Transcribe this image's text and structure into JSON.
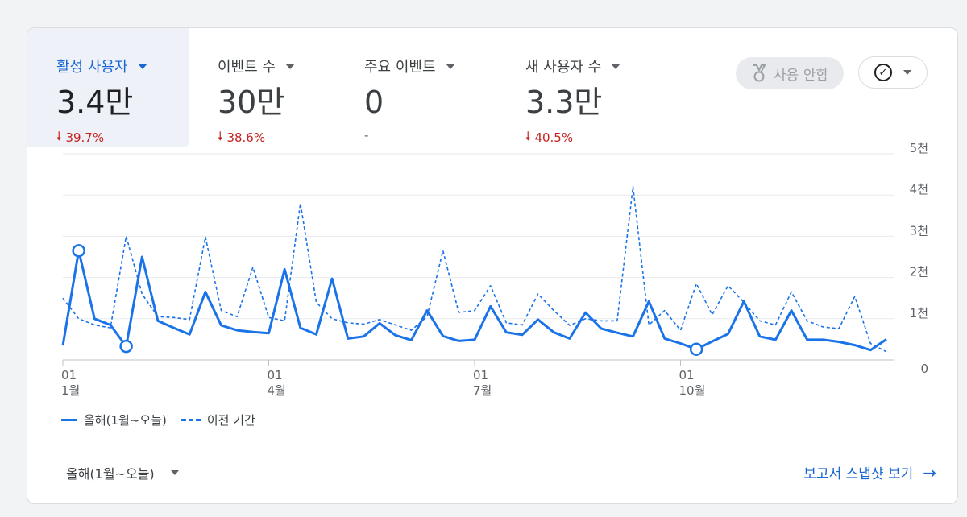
{
  "metrics": [
    {
      "label": "활성 사용자",
      "value": "3.4만",
      "change": "39.7%",
      "direction": "down"
    },
    {
      "label": "이벤트 수",
      "value": "30만",
      "change": "38.6%",
      "direction": "down"
    },
    {
      "label": "주요 이벤트",
      "value": "0",
      "change": "-",
      "direction": "none"
    },
    {
      "label": "새 사용자 수",
      "value": "3.3만",
      "change": "40.5%",
      "direction": "down"
    }
  ],
  "toolbar": {
    "disabled_label": "사용 안함",
    "medal_icon": "medal-icon",
    "check_icon": "check-circle-icon"
  },
  "legend": {
    "current": "올해(1월~오늘)",
    "previous": "이전 기간"
  },
  "footer": {
    "range_label": "올해(1월~오늘)",
    "report_link": "보고서 스냅샷 보기"
  },
  "colors": {
    "accent": "#1a73e8",
    "negative": "#c5221f",
    "active_bg": "#eef2f8"
  },
  "chart_data": {
    "type": "line",
    "x_tick_labels": [
      {
        "day": "01",
        "month": "1월"
      },
      {
        "day": "01",
        "month": "4월"
      },
      {
        "day": "01",
        "month": "7월"
      },
      {
        "day": "01",
        "month": "10월"
      }
    ],
    "y_tick_labels": [
      "0",
      "1천",
      "2천",
      "3천",
      "4천",
      "5천"
    ],
    "ylim": [
      0,
      5000
    ],
    "grid": true,
    "legend_position": "bottom-left",
    "series": [
      {
        "name": "올해(1월~오늘)",
        "style": "solid",
        "values": [
          350,
          2650,
          1000,
          850,
          330,
          2500,
          950,
          780,
          620,
          1650,
          840,
          720,
          680,
          650,
          2200,
          780,
          620,
          1970,
          520,
          570,
          890,
          600,
          480,
          1200,
          580,
          460,
          490,
          1300,
          670,
          610,
          980,
          670,
          520,
          1150,
          760,
          660,
          570,
          1420,
          520,
          400,
          260,
          450,
          630,
          1420,
          570,
          490,
          1200,
          490,
          490,
          440,
          360,
          240,
          500
        ]
      },
      {
        "name": "이전 기간",
        "style": "dashed",
        "values": [
          1500,
          1000,
          850,
          780,
          3000,
          1600,
          1050,
          1030,
          980,
          2980,
          1200,
          1050,
          2250,
          1030,
          950,
          3800,
          1400,
          1000,
          900,
          870,
          980,
          850,
          720,
          1050,
          2650,
          1150,
          1200,
          1800,
          900,
          850,
          1600,
          1200,
          840,
          1000,
          950,
          950,
          4200,
          850,
          1200,
          720,
          1850,
          1100,
          1800,
          1400,
          950,
          850,
          1650,
          950,
          800,
          760,
          1540,
          400,
          200
        ]
      }
    ],
    "highlighted_points": [
      {
        "series": 0,
        "index": 1
      },
      {
        "series": 0,
        "index": 4
      },
      {
        "series": 0,
        "index": 40
      }
    ]
  }
}
